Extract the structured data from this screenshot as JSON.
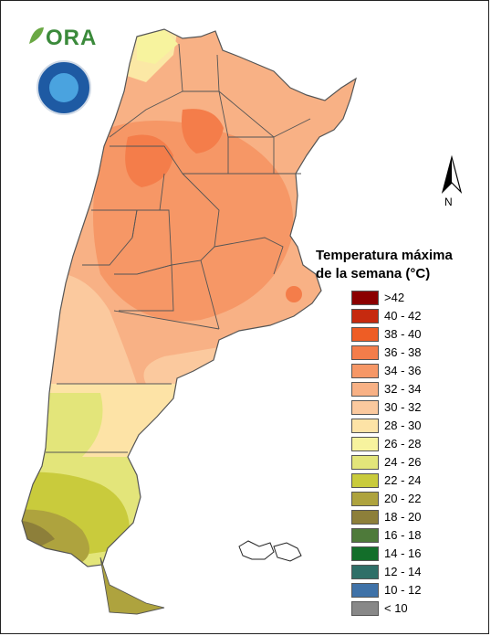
{
  "brand": {
    "logo_text": "ORA"
  },
  "north_label": "N",
  "legend": {
    "title_line1": "Temperatura máxima",
    "title_line2": "de la semana (°C)",
    "items": [
      {
        "label": ">42",
        "color": "#8b0000"
      },
      {
        "label": "40 - 42",
        "color": "#c62a0f"
      },
      {
        "label": "38 - 40",
        "color": "#ee5d25"
      },
      {
        "label": "36 - 38",
        "color": "#f47d4a"
      },
      {
        "label": "34 - 36",
        "color": "#f69766"
      },
      {
        "label": "32 - 34",
        "color": "#f8b185"
      },
      {
        "label": "30 - 32",
        "color": "#fbc99e"
      },
      {
        "label": "28 - 30",
        "color": "#fde3a6"
      },
      {
        "label": "26 - 28",
        "color": "#f7f39e"
      },
      {
        "label": "24 - 26",
        "color": "#e3e57a"
      },
      {
        "label": "22 - 24",
        "color": "#c9cb3c"
      },
      {
        "label": "20 - 22",
        "color": "#aea33e"
      },
      {
        "label": "18 - 20",
        "color": "#8d7f3a"
      },
      {
        "label": "16 - 18",
        "color": "#4e7a3a"
      },
      {
        "label": "14 - 16",
        "color": "#136e2a"
      },
      {
        "label": "12 - 14",
        "color": "#2f6f68"
      },
      {
        "label": "10 - 12",
        "color": "#3f72a8"
      },
      {
        "label": "< 10",
        "color": "#888888"
      }
    ]
  }
}
